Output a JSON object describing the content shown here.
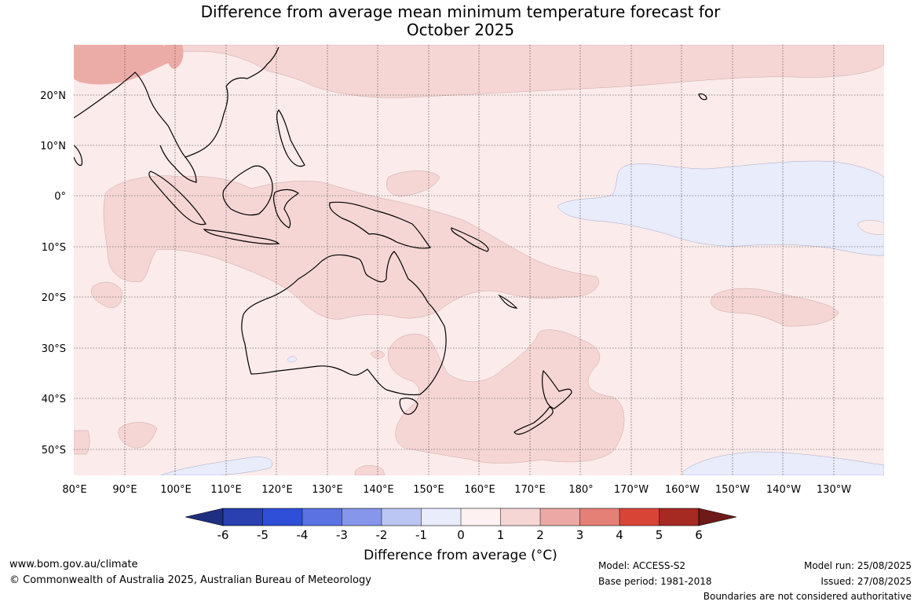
{
  "title": {
    "line1": "Difference from average mean minimum temperature forecast for",
    "line2": "October 2025"
  },
  "map": {
    "lat_labels": [
      "20°N",
      "10°N",
      "0°",
      "10°S",
      "20°S",
      "30°S",
      "40°S",
      "50°S"
    ],
    "lon_labels": [
      "80°E",
      "90°E",
      "100°E",
      "110°E",
      "120°E",
      "130°E",
      "140°E",
      "150°E",
      "160°E",
      "170°E",
      "180°",
      "170°W",
      "160°W",
      "150°W",
      "140°W",
      "130°W"
    ],
    "colors": {
      "background": "#fbebea",
      "warm_1_2": "#f5d6d5",
      "warm_2_3": "#ebaca8",
      "cool_0_m1": "#e8ecfb",
      "land_outline": "#000000",
      "border": "#7f7f7f"
    }
  },
  "colorbar": {
    "title": "Difference from average (°C)",
    "ticks": [
      "-6",
      "-5",
      "-4",
      "-3",
      "-2",
      "-1",
      "0",
      "1",
      "2",
      "3",
      "4",
      "5",
      "6"
    ],
    "colors": [
      "#1f2f80",
      "#2a3fb0",
      "#2f4fd8",
      "#5a72e2",
      "#8696ea",
      "#bcc6f4",
      "#e8ecfb",
      "#fdf2f1",
      "#f5d6d5",
      "#eba8a4",
      "#e58076",
      "#d84537",
      "#a62a22",
      "#6e1a18"
    ]
  },
  "footer": {
    "website": "www.bom.gov.au/climate",
    "copyright": "© Commonwealth of Australia 2025, Australian Bureau of Meteorology",
    "model": "Model: ACCESS-S2",
    "base_period": "Base period: 1981-2018",
    "model_run": "Model run: 25/08/2025",
    "issued": "Issued: 27/08/2025",
    "disclaimer": "Boundaries are not considered authoritative"
  }
}
